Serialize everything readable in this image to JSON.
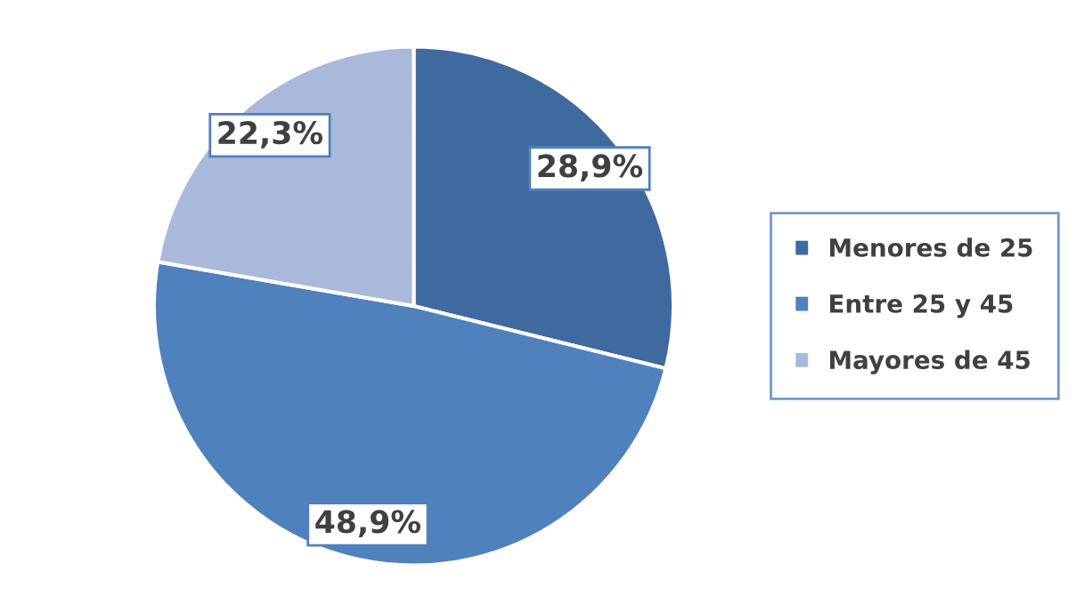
{
  "chart_data": {
    "type": "pie",
    "categories": [
      "Menores de 25",
      "Entre 25 y 45",
      "Mayores de 45"
    ],
    "values": [
      28.9,
      48.9,
      22.3
    ],
    "value_labels": [
      "28,9%",
      "48,9%",
      "22,3%"
    ],
    "colors": [
      "#3f6a9f",
      "#4f81bd",
      "#a9b9d9"
    ],
    "legend": "right"
  }
}
